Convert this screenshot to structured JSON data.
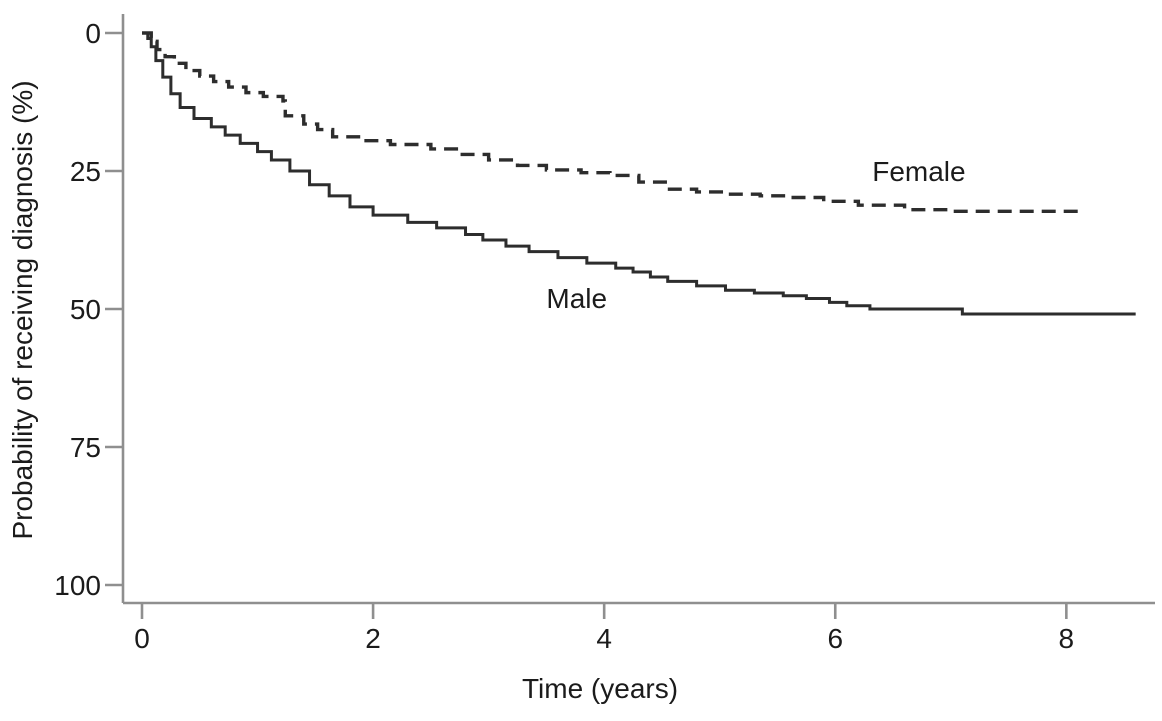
{
  "figure": {
    "background": "#ffffff",
    "text_color": "#1b1b1b",
    "axis_color": "#8f8f8f",
    "curve_color": "#2d2d2d"
  },
  "chart_data": {
    "type": "line",
    "subtype": "kaplan-meier-step",
    "title": "",
    "xlabel": "Time (years)",
    "ylabel": "Probability of receiving diagnosis (%)",
    "xlim": [
      0,
      8.75
    ],
    "ylim": [
      0,
      100
    ],
    "y_inverted": true,
    "grid": false,
    "legend_position": "inline-curve-labels",
    "x_ticks": [
      0,
      2,
      4,
      6,
      8
    ],
    "y_ticks": [
      0,
      25,
      50,
      75,
      100
    ],
    "series": [
      {
        "name": "Male",
        "style": "solid",
        "points": [
          [
            0,
            0
          ],
          [
            0.05,
            1
          ],
          [
            0.08,
            2.5
          ],
          [
            0.12,
            5
          ],
          [
            0.18,
            8
          ],
          [
            0.25,
            11
          ],
          [
            0.33,
            13.5
          ],
          [
            0.45,
            15.5
          ],
          [
            0.6,
            17
          ],
          [
            0.72,
            18.5
          ],
          [
            0.85,
            20
          ],
          [
            1.0,
            21.5
          ],
          [
            1.12,
            23
          ],
          [
            1.28,
            25
          ],
          [
            1.45,
            27.5
          ],
          [
            1.62,
            29.5
          ],
          [
            1.8,
            31.5
          ],
          [
            2.0,
            33
          ],
          [
            2.3,
            34.3
          ],
          [
            2.55,
            35.3
          ],
          [
            2.8,
            36.5
          ],
          [
            2.95,
            37.5
          ],
          [
            3.15,
            38.6
          ],
          [
            3.35,
            39.6
          ],
          [
            3.6,
            40.7
          ],
          [
            3.85,
            41.7
          ],
          [
            4.1,
            42.6
          ],
          [
            4.25,
            43.3
          ],
          [
            4.4,
            44.2
          ],
          [
            4.55,
            45
          ],
          [
            4.8,
            45.8
          ],
          [
            5.05,
            46.6
          ],
          [
            5.3,
            47.1
          ],
          [
            5.55,
            47.6
          ],
          [
            5.75,
            48.1
          ],
          [
            5.95,
            48.8
          ],
          [
            6.1,
            49.4
          ],
          [
            6.3,
            50
          ],
          [
            7.1,
            50.9
          ],
          [
            8.6,
            50.9
          ]
        ]
      },
      {
        "name": "Female",
        "style": "dashed",
        "points": [
          [
            0,
            0
          ],
          [
            0.08,
            1.5
          ],
          [
            0.13,
            3
          ],
          [
            0.2,
            4.3
          ],
          [
            0.28,
            5.5
          ],
          [
            0.38,
            6.8
          ],
          [
            0.5,
            7.8
          ],
          [
            0.62,
            8.8
          ],
          [
            0.75,
            9.8
          ],
          [
            0.9,
            10.8
          ],
          [
            1.05,
            11.5
          ],
          [
            1.22,
            12.3
          ],
          [
            1.24,
            15
          ],
          [
            1.4,
            16.5
          ],
          [
            1.52,
            17.5
          ],
          [
            1.65,
            18.8
          ],
          [
            1.9,
            19.5
          ],
          [
            2.15,
            20.2
          ],
          [
            2.5,
            21
          ],
          [
            2.75,
            22
          ],
          [
            3.0,
            23
          ],
          [
            3.25,
            24
          ],
          [
            3.5,
            24.8
          ],
          [
            3.8,
            25.3
          ],
          [
            4.05,
            25.8
          ],
          [
            4.3,
            27
          ],
          [
            4.55,
            28.3
          ],
          [
            4.8,
            28.8
          ],
          [
            5.05,
            29.2
          ],
          [
            5.35,
            29.5
          ],
          [
            5.6,
            29.8
          ],
          [
            5.9,
            30.5
          ],
          [
            6.2,
            31.2
          ],
          [
            6.6,
            32
          ],
          [
            7.0,
            32.3
          ],
          [
            8.1,
            32.5
          ]
        ]
      }
    ],
    "annotations": [
      {
        "text": "Female",
        "x": 6.32,
        "y": 26.8
      },
      {
        "text": "Male",
        "x": 3.5,
        "y": 49.8
      }
    ]
  }
}
